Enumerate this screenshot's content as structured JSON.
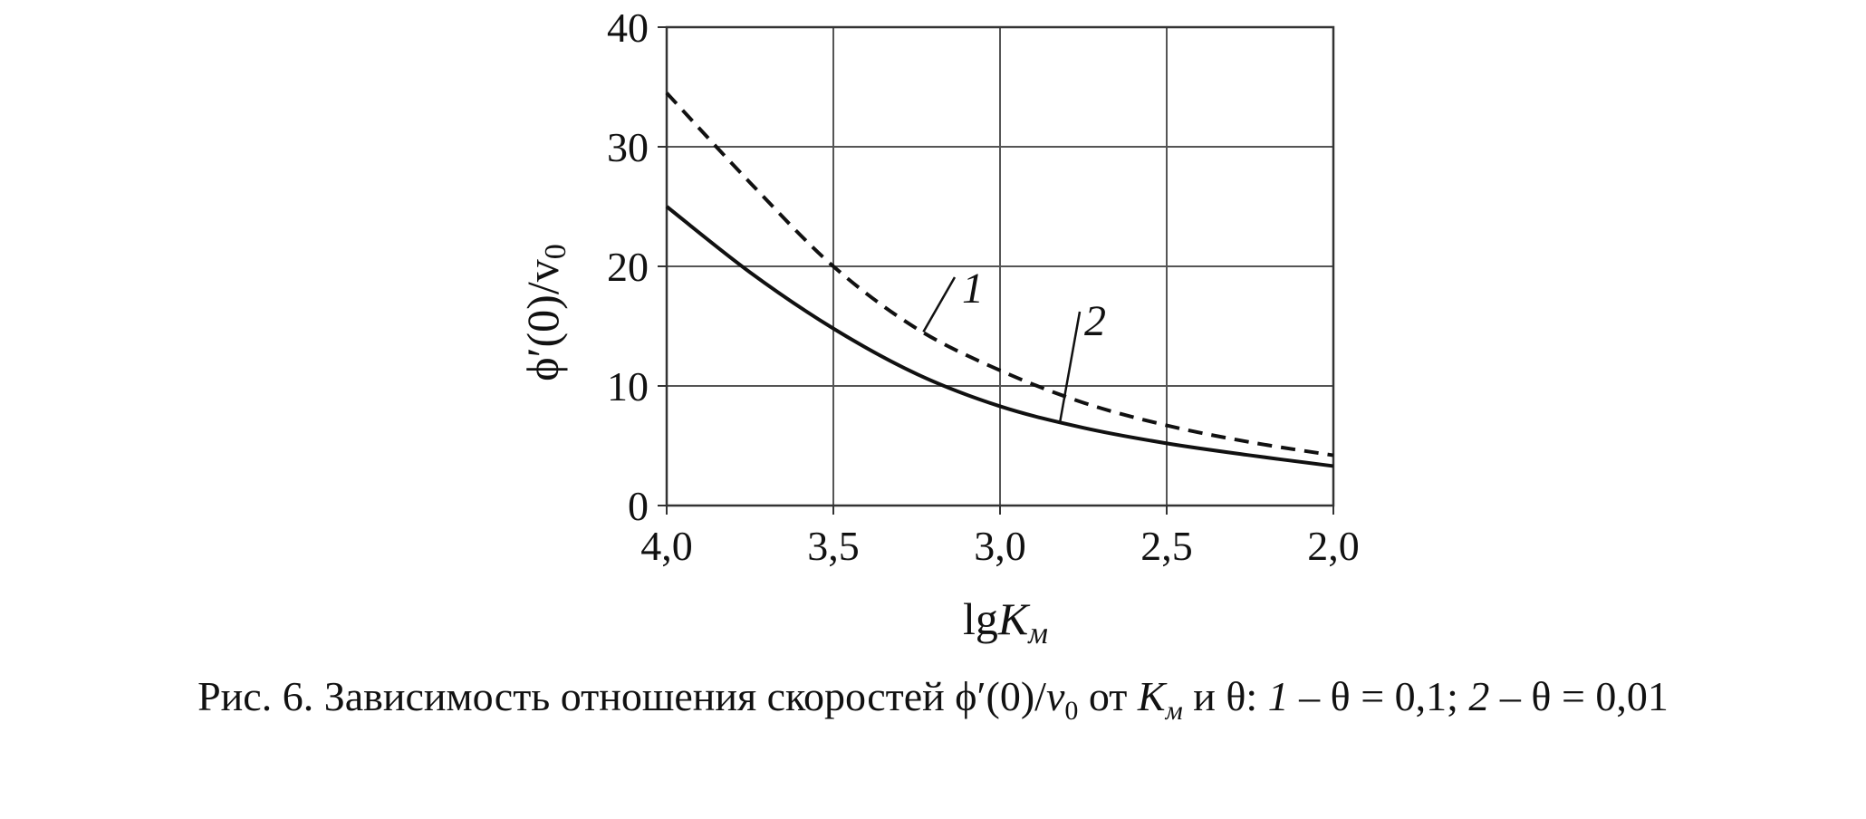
{
  "chart_data": {
    "type": "line",
    "x_axis": {
      "label_main": "lg",
      "label_var": "K",
      "label_sub": "м",
      "range": [
        4.0,
        2.0
      ],
      "reversed": true,
      "ticks": [
        4.0,
        3.5,
        3.0,
        2.5,
        2.0
      ],
      "tick_labels": [
        "4,0",
        "3,5",
        "3,0",
        "2,5",
        "2,0"
      ]
    },
    "y_axis": {
      "label": "ϕ′(0)/v",
      "label_sub": "0",
      "range": [
        0,
        40
      ],
      "ticks": [
        0,
        10,
        20,
        30,
        40
      ],
      "tick_labels": [
        "0",
        "10",
        "20",
        "30",
        "40"
      ]
    },
    "grid": true,
    "series": [
      {
        "name": "1",
        "style": "dashed",
        "x": [
          4.0,
          3.75,
          3.5,
          3.25,
          3.0,
          2.75,
          2.5,
          2.25,
          2.0
        ],
        "y": [
          34.5,
          27.0,
          20.0,
          14.8,
          11.3,
          8.6,
          6.7,
          5.3,
          4.2
        ]
      },
      {
        "name": "2",
        "style": "solid",
        "x": [
          4.0,
          3.75,
          3.5,
          3.25,
          3.0,
          2.75,
          2.5,
          2.25,
          2.0
        ],
        "y": [
          25.0,
          19.5,
          14.8,
          11.0,
          8.3,
          6.5,
          5.2,
          4.2,
          3.3
        ]
      }
    ],
    "annotations": [
      {
        "text": "1",
        "series": "1"
      },
      {
        "text": "2",
        "series": "2"
      }
    ]
  },
  "caption": {
    "prefix": "Рис. 6. Зависимость отношения скоростей ϕ′(0)/",
    "v": "v",
    "v_sub": "0",
    "mid": " от ",
    "K": "K",
    "K_sub": "м",
    "and_theta": " и θ: ",
    "n1": "1",
    "eq1": " – θ = 0,1; ",
    "n2": "2",
    "eq2": " – θ = 0,01"
  }
}
